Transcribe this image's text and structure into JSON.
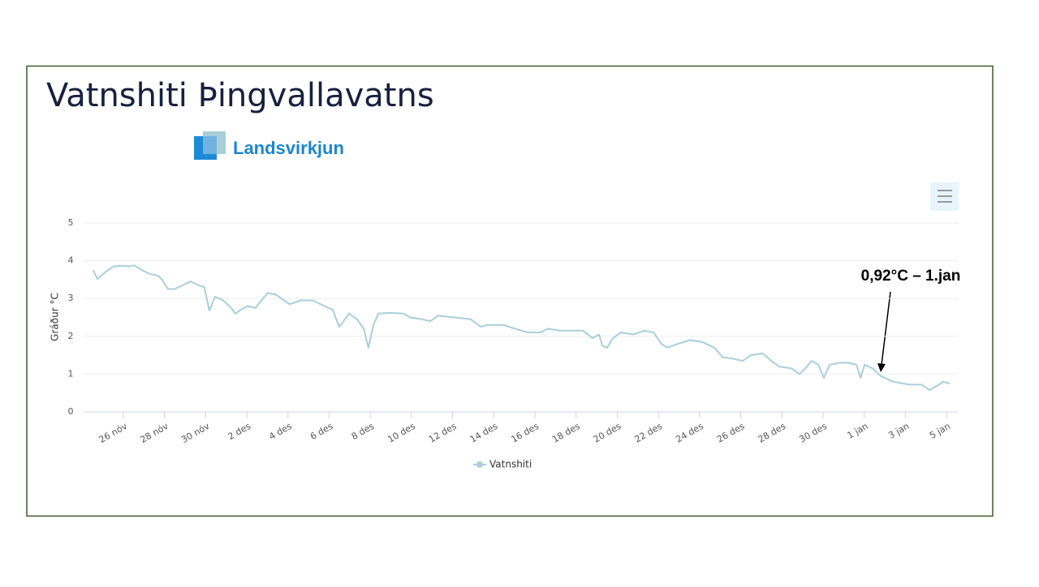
{
  "logo": "Landsvirkjun",
  "chart_data": {
    "type": "line",
    "title": "Vatnshiti Þingvallavatns",
    "ylabel": "Gráður °C",
    "annotation": "0,92°C – 1.jan",
    "x": [
      -0.46,
      -0.26,
      0.13,
      0.53,
      0.92,
      1.32,
      1.51,
      1.91,
      2.3,
      2.7,
      2.89,
      3.17,
      3.49,
      3.88,
      4.27,
      4.67,
      4.94,
      5.18,
      5.46,
      5.85,
      6.25,
      6.44,
      6.84,
      7.04,
      7.43,
      7.63,
      8.02,
      8.42,
      8.81,
      9.09,
      9.6,
      10.19,
      10.78,
      11.18,
      11.49,
      11.77,
      11.97,
      12.36,
      12.68,
      12.91,
      13.15,
      13.39,
      13.94,
      14.61,
      14.93,
      15.52,
      15.91,
      16.31,
      17.09,
      17.88,
      18.36,
      18.67,
      19.46,
      20.05,
      20.64,
      21.24,
      21.63,
      22.22,
      22.81,
      23.33,
      23.8,
      24.12,
      24.27,
      24.51,
      24.79,
      25.18,
      25.77,
      26.36,
      26.76,
      27.15,
      27.43,
      27.94,
      28.53,
      29.13,
      29.72,
      30.11,
      30.7,
      31.1,
      31.49,
      32.08,
      32.48,
      32.87,
      33.47,
      33.86,
      34.14,
      34.45,
      34.77,
      35.04,
      35.32,
      35.83,
      36.23,
      36.62,
      36.82,
      37.02,
      37.41,
      37.8,
      38.4,
      39.18,
      39.78,
      40.17,
      40.57,
      40.84,
      41.15
    ],
    "series": [
      {
        "name": "Vatnshiti",
        "color": "#a9cfdb",
        "values": [
          3.75,
          3.52,
          3.7,
          3.85,
          3.87,
          3.85,
          3.88,
          3.75,
          3.65,
          3.6,
          3.5,
          3.25,
          3.25,
          3.35,
          3.45,
          3.35,
          3.3,
          2.68,
          3.05,
          2.95,
          2.75,
          2.6,
          2.75,
          2.8,
          2.75,
          2.9,
          3.15,
          3.1,
          2.95,
          2.85,
          2.95,
          2.95,
          2.8,
          2.7,
          2.25,
          2.45,
          2.6,
          2.45,
          2.2,
          1.7,
          2.3,
          2.6,
          2.62,
          2.6,
          2.5,
          2.45,
          2.4,
          2.55,
          2.5,
          2.45,
          2.25,
          2.3,
          2.3,
          2.2,
          2.1,
          2.1,
          2.2,
          2.15,
          2.15,
          2.15,
          1.95,
          2.05,
          1.75,
          1.7,
          1.95,
          2.1,
          2.05,
          2.15,
          2.1,
          1.8,
          1.7,
          1.8,
          1.9,
          1.85,
          1.7,
          1.45,
          1.4,
          1.35,
          1.5,
          1.55,
          1.35,
          1.2,
          1.15,
          1.0,
          1.15,
          1.35,
          1.25,
          0.9,
          1.25,
          1.3,
          1.3,
          1.25,
          0.9,
          1.25,
          1.15,
          0.95,
          0.8,
          0.72,
          0.72,
          0.58,
          0.7,
          0.8,
          0.75
        ]
      }
    ],
    "xlim": [
      -0.93,
      41.55
    ],
    "xticks": [
      {
        "value": 1,
        "label": "26 nóv"
      },
      {
        "value": 3,
        "label": "28 nóv"
      },
      {
        "value": 5,
        "label": "30 nóv"
      },
      {
        "value": 7,
        "label": "2 des"
      },
      {
        "value": 9,
        "label": "4 des"
      },
      {
        "value": 11,
        "label": "6 des"
      },
      {
        "value": 13,
        "label": "8 des"
      },
      {
        "value": 15,
        "label": "10 des"
      },
      {
        "value": 17,
        "label": "12 des"
      },
      {
        "value": 19,
        "label": "14 des"
      },
      {
        "value": 21,
        "label": "16 des"
      },
      {
        "value": 23,
        "label": "18 des"
      },
      {
        "value": 25,
        "label": "20 des"
      },
      {
        "value": 27,
        "label": "22 des"
      },
      {
        "value": 29,
        "label": "24 des"
      },
      {
        "value": 31,
        "label": "26 des"
      },
      {
        "value": 33,
        "label": "28 des"
      },
      {
        "value": 35,
        "label": "30 des"
      },
      {
        "value": 37,
        "label": "1 jan"
      },
      {
        "value": 39,
        "label": "3 jan"
      },
      {
        "value": 41,
        "label": "5 jan"
      }
    ],
    "ylim": [
      0,
      5
    ],
    "yticks": [
      0,
      1,
      2,
      3,
      4,
      5
    ],
    "grid": true,
    "legend": "bottom"
  }
}
